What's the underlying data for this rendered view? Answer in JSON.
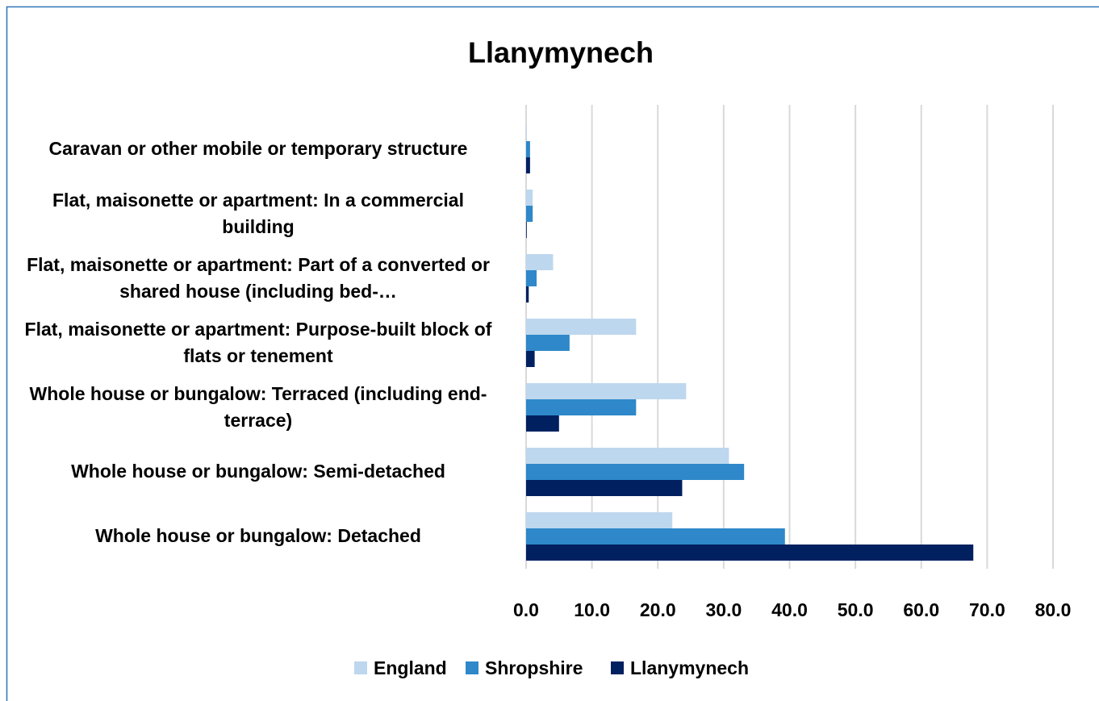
{
  "chart_data": {
    "type": "hbar",
    "title": "Llanymynech",
    "categories": [
      "Caravan or other mobile or temporary structure",
      "Flat, maisonette or apartment: In a commercial building",
      "Flat, maisonette or apartment: Part of a converted or shared house (including bed-…",
      "Flat, maisonette or apartment: Purpose-built block of flats or tenement",
      "Whole house or bungalow: Terraced (including end-terrace)",
      "Whole house or bungalow: Semi-detached",
      "Whole house or bungalow: Detached"
    ],
    "series": [
      {
        "name": "England",
        "color": "#bdd7ee",
        "values": [
          0.1,
          1.0,
          4.1,
          16.7,
          24.3,
          30.8,
          22.2
        ]
      },
      {
        "name": "Shropshire",
        "color": "#2e88c9",
        "values": [
          0.6,
          1.0,
          1.6,
          6.6,
          16.7,
          33.1,
          39.3
        ]
      },
      {
        "name": "Llanymynech",
        "color": "#002060",
        "values": [
          0.6,
          0.1,
          0.4,
          1.3,
          5.0,
          23.7,
          67.9
        ]
      }
    ],
    "xlim": [
      0,
      80
    ],
    "xticks": [
      {
        "value": 0,
        "label": "0.0"
      },
      {
        "value": 10,
        "label": "10.0"
      },
      {
        "value": 20,
        "label": "20.0"
      },
      {
        "value": 30,
        "label": "30.0"
      },
      {
        "value": 40,
        "label": "40.0"
      },
      {
        "value": 50,
        "label": "50.0"
      },
      {
        "value": 60,
        "label": "60.0"
      },
      {
        "value": 70,
        "label": "70.0"
      },
      {
        "value": 80,
        "label": "80.0"
      }
    ],
    "grid": true,
    "legend": "bottom"
  }
}
